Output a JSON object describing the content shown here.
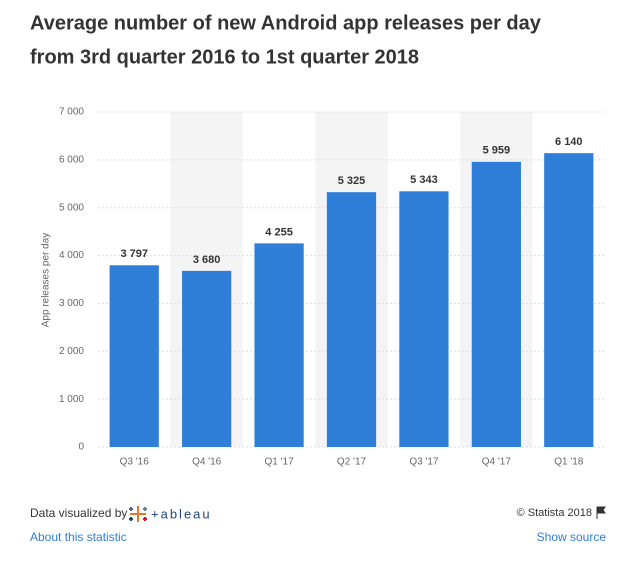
{
  "chart_data": {
    "type": "bar",
    "title": [
      "Average number of new Android app releases per day",
      "from 3rd quarter 2016 to 1st quarter 2018"
    ],
    "y_label": "App releases per day",
    "categories": [
      "Q3 '16",
      "Q4 '16",
      "Q1 '17",
      "Q2 '17",
      "Q3 '17",
      "Q4 '17",
      "Q1 '18"
    ],
    "values": [
      3797,
      3680,
      4255,
      5325,
      5343,
      5959,
      6140
    ],
    "value_labels": [
      "3 797",
      "3 680",
      "4 255",
      "5 325",
      "5 343",
      "5 959",
      "6 140"
    ],
    "color": "#2f7ed8",
    "ylim": [
      0,
      7000
    ],
    "yticks": [
      0,
      {
        "value": 1000,
        "label": "1 000"
      },
      {
        "value": 2000,
        "label": "2 000"
      },
      {
        "value": 3000,
        "label": "3 000"
      },
      {
        "value": 4000,
        "label": "4 000"
      },
      {
        "value": 5000,
        "label": "5 000"
      },
      {
        "value": 6000,
        "label": "6 000"
      },
      {
        "value": 7000,
        "label": "7 000"
      }
    ],
    "grid": true
  },
  "footer": {
    "visualized_by": "Data visualized by",
    "tool": "+ableau",
    "copyright": "© Statista 2018",
    "about": "About this statistic",
    "source": "Show source"
  }
}
